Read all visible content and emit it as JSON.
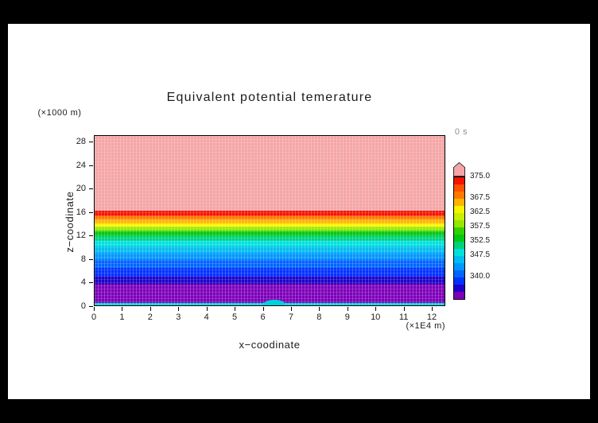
{
  "page": {
    "background": "#000000",
    "canvas_background": "#ffffff"
  },
  "title": "Equivalent potential temerature",
  "time_label": "0 s",
  "time_label_color": "#8e8e8e",
  "axes": {
    "x": {
      "label": "x−coodinate",
      "unit": "(×1E4 m)",
      "ticks": [
        "0",
        "1",
        "2",
        "3",
        "4",
        "5",
        "6",
        "7",
        "8",
        "9",
        "10",
        "11",
        "12"
      ]
    },
    "y": {
      "label": "z−coodinate",
      "unit": "(×1000 m)",
      "ticks": [
        "0",
        "4",
        "8",
        "12",
        "16",
        "20",
        "24",
        "28"
      ]
    }
  },
  "colorbar": {
    "arrow_color": "#f5a5a5",
    "arrow_meaning": "values above 375.0",
    "segments": [
      {
        "color": "#f51400",
        "label": "375.0"
      },
      {
        "color": "#ff5000",
        "label": ""
      },
      {
        "color": "#ff7800",
        "label": ""
      },
      {
        "color": "#ffb400",
        "label": "367.5"
      },
      {
        "color": "#f5f500",
        "label": ""
      },
      {
        "color": "#c8f000",
        "label": "362.5"
      },
      {
        "color": "#96e600",
        "label": ""
      },
      {
        "color": "#32d200",
        "label": "357.5"
      },
      {
        "color": "#00c814",
        "label": ""
      },
      {
        "color": "#00d278",
        "label": "352.5"
      },
      {
        "color": "#00e1dc",
        "label": ""
      },
      {
        "color": "#00bef0",
        "label": "347.5"
      },
      {
        "color": "#0096ff",
        "label": ""
      },
      {
        "color": "#0064ff",
        "label": ""
      },
      {
        "color": "#0032ff",
        "label": "340.0"
      },
      {
        "color": "#1e00c8",
        "label": ""
      },
      {
        "color": "#7d00b9",
        "label": ""
      }
    ]
  },
  "chart_data": {
    "type": "heatmap",
    "title": "Equivalent potential temerature",
    "xlabel": "x−coodinate",
    "x_unit": "×1E4 m",
    "ylabel": "z−coodinate",
    "y_unit": "×1000 m",
    "xlim": [
      0,
      12.5
    ],
    "ylim": [
      0,
      29
    ],
    "time": "0 s",
    "labeled_levels": [
      340.0,
      347.5,
      352.5,
      357.5,
      362.5,
      367.5,
      375.0
    ],
    "structure": "horizontally uniform stratified equivalent potential temperature field; filled contour bands listed bottom to top",
    "bands": [
      {
        "z_from": 0.0,
        "z_to": 0.4,
        "color": "#00d2dc",
        "approx_theta_e": 351
      },
      {
        "z_from": 0.4,
        "z_to": 3.6,
        "color": "#7d00b9",
        "approx_theta_e": 336
      },
      {
        "z_from": 3.6,
        "z_to": 5.0,
        "color": "#1e00c8",
        "approx_theta_e": 339
      },
      {
        "z_from": 5.0,
        "z_to": 6.4,
        "color": "#0032ff",
        "approx_theta_e": 341
      },
      {
        "z_from": 6.4,
        "z_to": 7.8,
        "color": "#0064ff",
        "approx_theta_e": 344
      },
      {
        "z_from": 7.8,
        "z_to": 9.0,
        "color": "#0096ff",
        "approx_theta_e": 346
      },
      {
        "z_from": 9.0,
        "z_to": 10.1,
        "color": "#00bef0",
        "approx_theta_e": 349
      },
      {
        "z_from": 10.1,
        "z_to": 11.1,
        "color": "#00e1dc",
        "approx_theta_e": 351
      },
      {
        "z_from": 11.1,
        "z_to": 11.9,
        "color": "#00d278",
        "approx_theta_e": 354
      },
      {
        "z_from": 11.9,
        "z_to": 12.7,
        "color": "#00c814",
        "approx_theta_e": 356
      },
      {
        "z_from": 12.7,
        "z_to": 13.4,
        "color": "#96e600",
        "approx_theta_e": 359
      },
      {
        "z_from": 13.4,
        "z_to": 14.0,
        "color": "#f5f500",
        "approx_theta_e": 361
      },
      {
        "z_from": 14.0,
        "z_to": 14.7,
        "color": "#ffb400",
        "approx_theta_e": 364
      },
      {
        "z_from": 14.7,
        "z_to": 15.3,
        "color": "#ff7800",
        "approx_theta_e": 368
      },
      {
        "z_from": 15.3,
        "z_to": 16.2,
        "color": "#f51400",
        "approx_theta_e": 373
      },
      {
        "z_from": 16.2,
        "z_to": 29.0,
        "color": "#f5a5a5",
        "approx_theta_e": 378
      }
    ],
    "bubble": {
      "x_center": 6.4,
      "x_halfwidth": 0.4,
      "z_top": 0.9,
      "color": "#00d2dc",
      "note": "surface warm-bubble perturbation"
    }
  }
}
